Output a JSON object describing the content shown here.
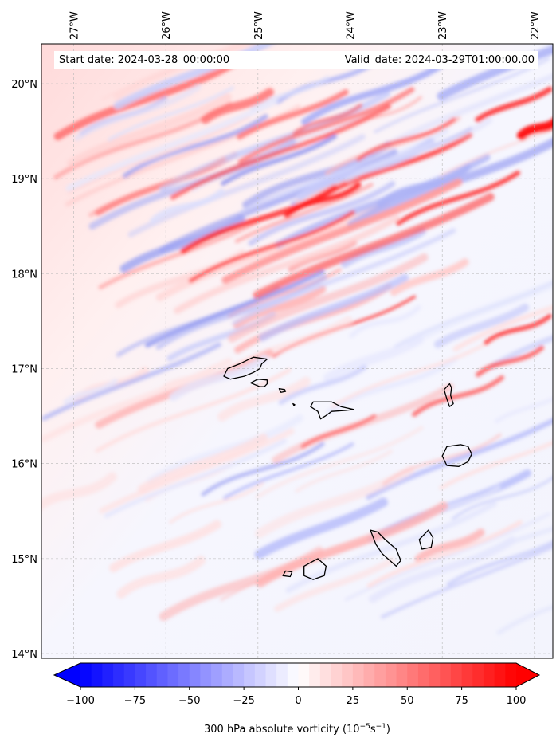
{
  "map": {
    "start_label": "Start date: 2024-03-28_00:00:00",
    "valid_label": "Valid_date: 2024-03-29T01:00:00.00",
    "lon_ticks": [
      "27°W",
      "26°W",
      "25°W",
      "24°W",
      "23°W",
      "22°W"
    ],
    "lat_ticks": [
      "20°N",
      "19°N",
      "18°N",
      "17°N",
      "16°N",
      "15°N",
      "14°N"
    ],
    "extent": {
      "lon_min": -27.35,
      "lon_max": -21.8,
      "lat_min": 13.95,
      "lat_max": 20.42
    },
    "islands": [
      "Santo Antão",
      "São Vicente",
      "Santa Luzia",
      "Branco",
      "São Nicolau",
      "Sal",
      "Boa Vista",
      "Brava",
      "Fogo",
      "Santiago",
      "Maio"
    ]
  },
  "colorbar": {
    "label_prefix": "300 hPa absolute vorticity (10",
    "exp1": "−5",
    "mid": "s",
    "exp2": "−1",
    "label_suffix": ")",
    "tick_labels": [
      "−100",
      "−75",
      "−50",
      "−25",
      "0",
      "25",
      "50",
      "75",
      "100"
    ],
    "min": -100,
    "max": 100,
    "extend": "both",
    "colormap": "bwr",
    "low_color": "#0000ff",
    "mid_color": "#ffffff",
    "high_color": "#ff0000"
  },
  "field": {
    "variable": "300 hPa absolute vorticity",
    "background_color": "#f4f5fd",
    "ne_color": "#ffdcdc",
    "coastline_color": "#000000",
    "gridline_color": "#bbbbbb"
  }
}
